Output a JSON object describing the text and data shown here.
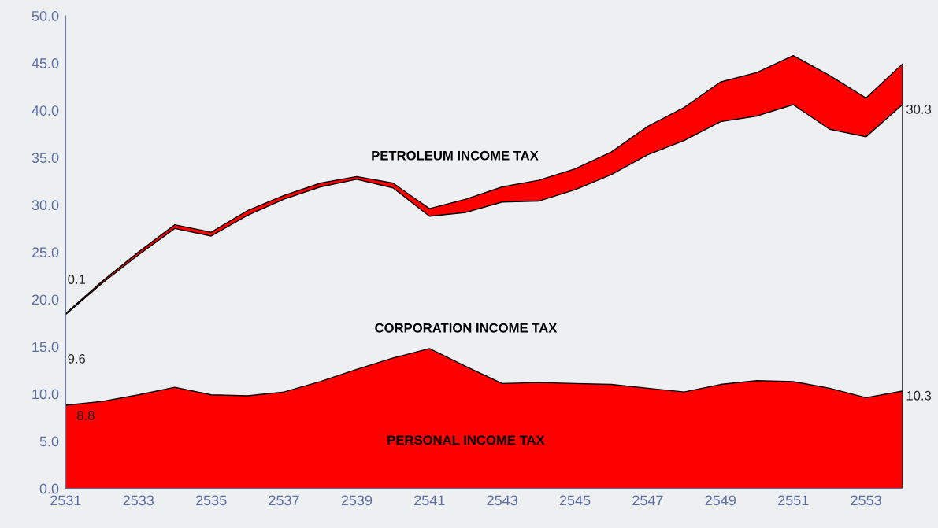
{
  "chart_data": {
    "type": "area",
    "stacked": true,
    "x": [
      2531,
      2532,
      2533,
      2534,
      2535,
      2536,
      2537,
      2538,
      2539,
      2540,
      2541,
      2542,
      2543,
      2544,
      2545,
      2546,
      2547,
      2548,
      2549,
      2550,
      2551,
      2552,
      2553,
      2554
    ],
    "series": [
      {
        "name": "PERSONAL INCOME TAX",
        "color": "#ff0000",
        "values": [
          8.8,
          9.2,
          9.9,
          10.7,
          9.9,
          9.8,
          10.2,
          11.3,
          12.6,
          13.8,
          14.8,
          12.9,
          11.1,
          11.2,
          11.1,
          11.0,
          10.6,
          10.2,
          11.0,
          11.4,
          11.3,
          10.6,
          9.6,
          10.3
        ],
        "value_labels": [
          "8.8",
          null,
          null,
          null,
          null,
          null,
          null,
          null,
          null,
          null,
          null,
          null,
          null,
          null,
          null,
          null,
          null,
          null,
          null,
          null,
          null,
          null,
          null,
          "10.3"
        ]
      },
      {
        "name": "CORPORATION INCOME TAX",
        "color": "#eeeff1",
        "values": [
          9.6,
          12.5,
          14.8,
          16.8,
          16.8,
          19.1,
          20.4,
          20.6,
          20.1,
          18.0,
          14.0,
          16.3,
          19.2,
          19.2,
          20.5,
          22.2,
          24.7,
          26.6,
          27.8,
          28.0,
          29.3,
          27.4,
          27.6,
          30.3
        ],
        "value_labels": [
          "9.6",
          null,
          null,
          null,
          null,
          null,
          null,
          null,
          null,
          null,
          null,
          null,
          null,
          null,
          null,
          null,
          null,
          null,
          null,
          null,
          null,
          null,
          null,
          "30.3"
        ]
      },
      {
        "name": "PETROLEUM INCOME TAX",
        "color": "#ff0000",
        "values": [
          0.1,
          0.2,
          0.3,
          0.4,
          0.4,
          0.5,
          0.4,
          0.4,
          0.3,
          0.5,
          0.8,
          1.4,
          1.6,
          2.2,
          2.2,
          2.4,
          3.0,
          3.5,
          4.2,
          4.6,
          5.2,
          5.7,
          4.1,
          4.3
        ],
        "value_labels": [
          "0.1",
          null,
          null,
          null,
          null,
          null,
          null,
          null,
          null,
          null,
          null,
          null,
          null,
          null,
          null,
          null,
          null,
          null,
          null,
          null,
          null,
          null,
          null,
          null
        ]
      }
    ],
    "xlim": [
      2531,
      2554
    ],
    "xticks": [
      2531,
      2533,
      2535,
      2537,
      2539,
      2541,
      2543,
      2545,
      2547,
      2549,
      2551,
      2553
    ],
    "ylim": [
      0,
      50
    ],
    "yticks": [
      {
        "value": 0,
        "label": "0.0"
      },
      {
        "value": 5,
        "label": "5.0"
      },
      {
        "value": 10,
        "label": "10.0"
      },
      {
        "value": 15,
        "label": "15.0"
      },
      {
        "value": 20,
        "label": "20.0"
      },
      {
        "value": 25,
        "label": "25.0"
      },
      {
        "value": 30,
        "label": "30.0"
      },
      {
        "value": 35,
        "label": "35.0"
      },
      {
        "value": 40,
        "label": "40.0"
      },
      {
        "value": 45,
        "label": "45.0"
      },
      {
        "value": 50,
        "label": "50.0"
      }
    ],
    "grid": false,
    "legend": false
  }
}
